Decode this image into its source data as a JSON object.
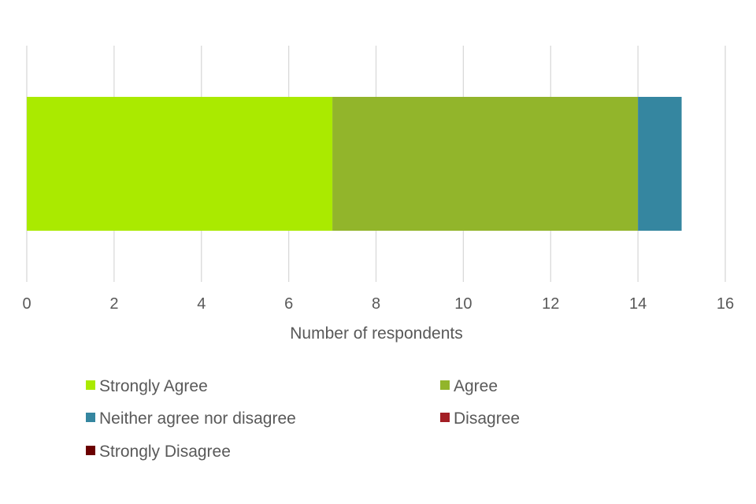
{
  "chart_data": {
    "type": "bar",
    "orientation": "horizontal",
    "stacked": true,
    "title": "",
    "xlabel": "Number of respondents",
    "ylabel": "",
    "xlim": [
      0,
      16
    ],
    "x_ticks": [
      0,
      2,
      4,
      6,
      8,
      10,
      12,
      14,
      16
    ],
    "categories": [
      ""
    ],
    "grid": "vertical",
    "legend_position": "bottom",
    "series": [
      {
        "name": "Strongly Agree",
        "values": [
          7
        ],
        "color": "#aaea00"
      },
      {
        "name": "Agree",
        "values": [
          7
        ],
        "color": "#92b52b"
      },
      {
        "name": "Neither agree nor disagree",
        "values": [
          1
        ],
        "color": "#3586a0"
      },
      {
        "name": "Disagree",
        "values": [
          0
        ],
        "color": "#a31f25"
      },
      {
        "name": "Strongly Disagree",
        "values": [
          0
        ],
        "color": "#6b0000"
      }
    ]
  }
}
